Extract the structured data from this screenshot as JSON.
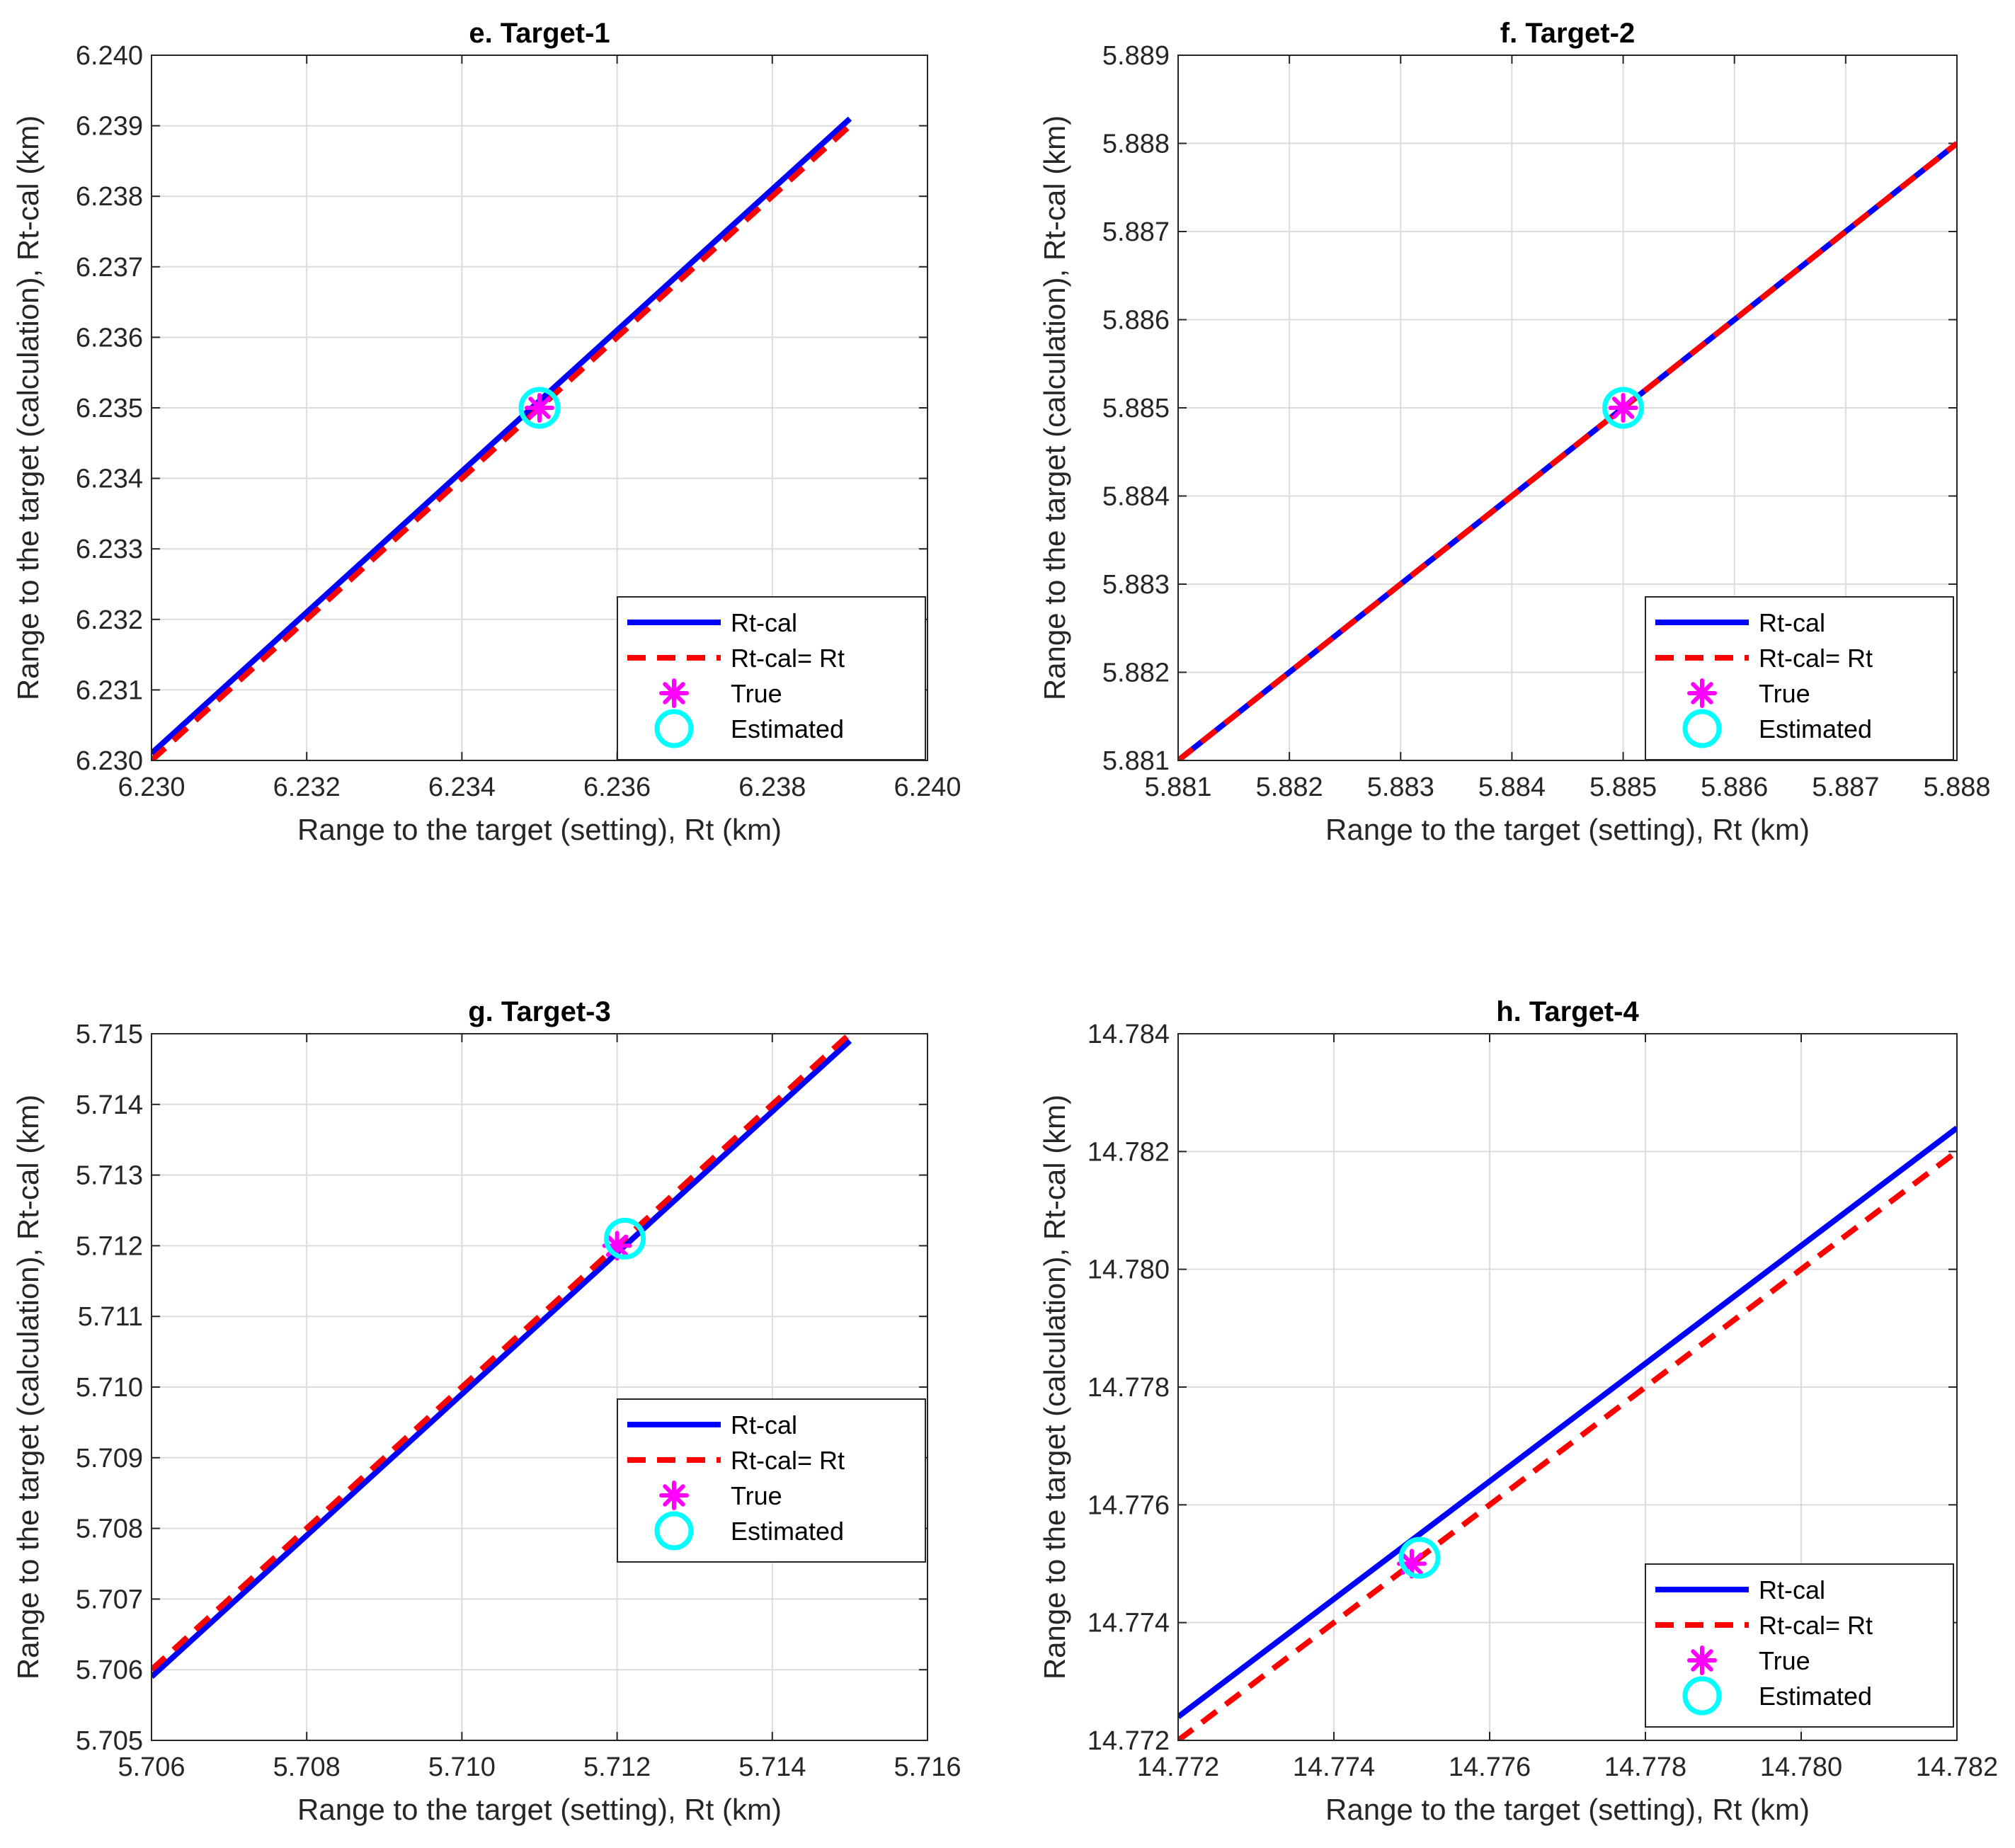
{
  "chart_data": [
    {
      "type": "line",
      "title": "e. Target-1",
      "xlabel": "Range to the target (setting), Rt (km)",
      "ylabel": "Range to the target (calculation), Rt-cal (km)",
      "xlim": [
        6.23,
        6.24
      ],
      "ylim": [
        6.23,
        6.24
      ],
      "xticks": [
        "6.230",
        "6.232",
        "6.234",
        "6.236",
        "6.238",
        "6.240"
      ],
      "yticks": [
        "6.230",
        "6.231",
        "6.232",
        "6.233",
        "6.234",
        "6.235",
        "6.236",
        "6.237",
        "6.238",
        "6.239",
        "6.240"
      ],
      "grid": true,
      "legend_position": "bottom-right",
      "legend": [
        "Rt-cal",
        "Rt-cal= Rt",
        "True",
        "Estimated"
      ],
      "series": [
        {
          "name": "Rt-cal",
          "style": "solid",
          "color": "#0000ff",
          "x": [
            6.23,
            6.239
          ],
          "y": [
            6.2301,
            6.2391
          ]
        },
        {
          "name": "Rt-cal= Rt",
          "style": "dashed",
          "color": "#ff0000",
          "x": [
            6.23,
            6.239
          ],
          "y": [
            6.23,
            6.239
          ]
        }
      ],
      "points": [
        {
          "name": "True",
          "marker": "asterisk",
          "color": "#ff00ff",
          "x": 6.235,
          "y": 6.235
        },
        {
          "name": "Estimated",
          "marker": "circle",
          "color": "#00ffff",
          "x": 6.235,
          "y": 6.235
        }
      ]
    },
    {
      "type": "line",
      "title": "f. Target-2",
      "xlabel": "Range to the target (setting), Rt (km)",
      "ylabel": "Range to the target (calculation), Rt-cal (km)",
      "xlim": [
        5.881,
        5.888
      ],
      "ylim": [
        5.881,
        5.889
      ],
      "xticks": [
        "5.881",
        "5.882",
        "5.883",
        "5.884",
        "5.885",
        "5.886",
        "5.887",
        "5.888"
      ],
      "yticks": [
        "5.881",
        "5.882",
        "5.883",
        "5.884",
        "5.885",
        "5.886",
        "5.887",
        "5.888",
        "5.889"
      ],
      "grid": true,
      "legend_position": "bottom-right",
      "legend": [
        "Rt-cal",
        "Rt-cal= Rt",
        "True",
        "Estimated"
      ],
      "series": [
        {
          "name": "Rt-cal",
          "style": "solid",
          "color": "#0000ff",
          "x": [
            5.881,
            5.888
          ],
          "y": [
            5.881,
            5.888
          ]
        },
        {
          "name": "Rt-cal= Rt",
          "style": "dashed",
          "color": "#ff0000",
          "x": [
            5.881,
            5.888
          ],
          "y": [
            5.881,
            5.888
          ]
        }
      ],
      "points": [
        {
          "name": "True",
          "marker": "asterisk",
          "color": "#ff00ff",
          "x": 5.885,
          "y": 5.885
        },
        {
          "name": "Estimated",
          "marker": "circle",
          "color": "#00ffff",
          "x": 5.885,
          "y": 5.885
        }
      ]
    },
    {
      "type": "line",
      "title": "g. Target-3",
      "xlabel": "Range to the target (setting), Rt (km)",
      "ylabel": "Range to the target (calculation), Rt-cal (km)",
      "xlim": [
        5.706,
        5.716
      ],
      "ylim": [
        5.705,
        5.715
      ],
      "xticks": [
        "5.706",
        "5.708",
        "5.710",
        "5.712",
        "5.714",
        "5.716"
      ],
      "yticks": [
        "5.705",
        "5.706",
        "5.707",
        "5.708",
        "5.709",
        "5.710",
        "5.711",
        "5.712",
        "5.713",
        "5.714",
        "5.715"
      ],
      "grid": true,
      "legend_position": "center-right",
      "legend": [
        "Rt-cal",
        "Rt-cal= Rt",
        "True",
        "Estimated"
      ],
      "series": [
        {
          "name": "Rt-cal",
          "style": "solid",
          "color": "#0000ff",
          "x": [
            5.706,
            5.715
          ],
          "y": [
            5.7059,
            5.7149
          ]
        },
        {
          "name": "Rt-cal= Rt",
          "style": "dashed",
          "color": "#ff0000",
          "x": [
            5.706,
            5.715
          ],
          "y": [
            5.706,
            5.715
          ]
        }
      ],
      "points": [
        {
          "name": "True",
          "marker": "asterisk",
          "color": "#ff00ff",
          "x": 5.712,
          "y": 5.712
        },
        {
          "name": "Estimated",
          "marker": "circle",
          "color": "#00ffff",
          "x": 5.7121,
          "y": 5.7121
        }
      ]
    },
    {
      "type": "line",
      "title": "h. Target-4",
      "xlabel": "Range to the target (setting), Rt (km)",
      "ylabel": "Range to the target (calculation), Rt-cal (km)",
      "xlim": [
        14.772,
        14.782
      ],
      "ylim": [
        14.772,
        14.784
      ],
      "xticks": [
        "14.772",
        "14.774",
        "14.776",
        "14.778",
        "14.780",
        "14.782"
      ],
      "yticks": [
        "14.772",
        "14.774",
        "14.776",
        "14.778",
        "14.780",
        "14.782",
        "14.784"
      ],
      "grid": true,
      "legend_position": "bottom-right",
      "legend": [
        "Rt-cal",
        "Rt-cal= Rt",
        "True",
        "Estimated"
      ],
      "series": [
        {
          "name": "Rt-cal",
          "style": "solid",
          "color": "#0000ff",
          "x": [
            14.772,
            14.782
          ],
          "y": [
            14.7724,
            14.7824
          ]
        },
        {
          "name": "Rt-cal= Rt",
          "style": "dashed",
          "color": "#ff0000",
          "x": [
            14.772,
            14.782
          ],
          "y": [
            14.772,
            14.782
          ]
        }
      ],
      "points": [
        {
          "name": "True",
          "marker": "asterisk",
          "color": "#ff00ff",
          "x": 14.775,
          "y": 14.775
        },
        {
          "name": "Estimated",
          "marker": "circle",
          "color": "#00ffff",
          "x": 14.7751,
          "y": 14.7751
        }
      ]
    }
  ]
}
